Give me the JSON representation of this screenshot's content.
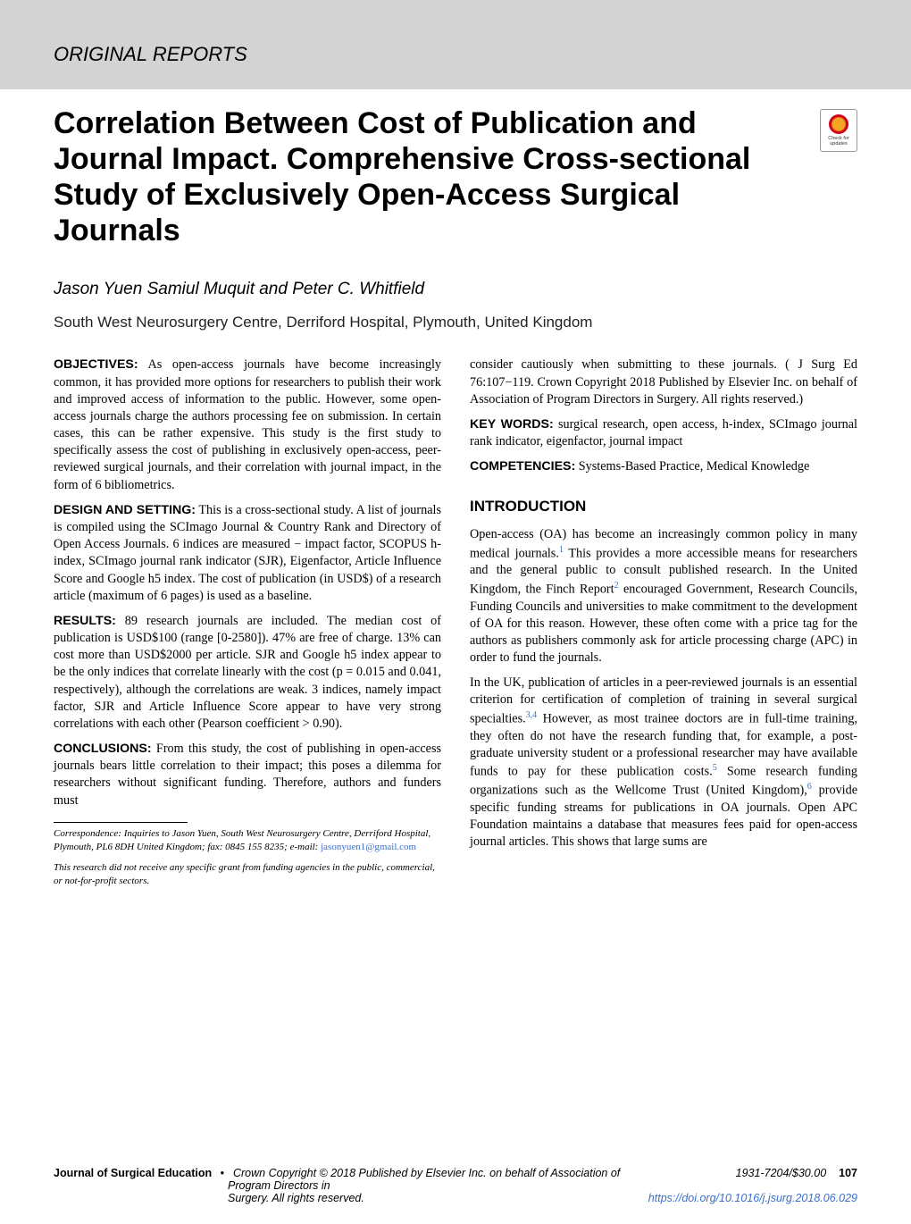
{
  "header": {
    "section_label": "ORIGINAL REPORTS"
  },
  "article": {
    "title": "Correlation Between Cost of Publication and Journal Impact. Comprehensive Cross-sectional Study of Exclusively Open-Access Surgical Journals",
    "authors": "Jason Yuen Samiul Muquit and Peter C. Whitfield",
    "affiliation": "South West Neurosurgery Centre, Derriford Hospital, Plymouth, United Kingdom"
  },
  "badge": {
    "line1": "Check for",
    "line2": "updates"
  },
  "abstract": {
    "objectives_label": "OBJECTIVES:",
    "objectives_text": " As open-access journals have become increasingly common, it has provided more options for researchers to publish their work and improved access of information to the public. However, some open-access journals charge the authors processing fee on submission. In certain cases, this can be rather expensive. This study is the first study to specifically assess the cost of publishing in exclusively open-access, peer-reviewed surgical journals, and their correlation with journal impact, in the form of 6 bibliometrics.",
    "design_label": "DESIGN AND SETTING:",
    "design_text": " This is a cross-sectional study. A list of journals is compiled using the SCImago Journal & Country Rank and Directory of Open Access Journals. 6 indices are measured − impact factor, SCOPUS h-index, SCImago journal rank indicator (SJR), Eigenfactor, Article Influence Score and Google h5 index. The cost of publication (in USD$) of a research article (maximum of 6 pages) is used as a baseline.",
    "results_label": "RESULTS:",
    "results_text": " 89 research journals are included. The median cost of publication is USD$100 (range [0-2580]). 47% are free of charge. 13% can cost more than USD$2000 per article. SJR and Google h5 index appear to be the only indices that correlate linearly with the cost (p = 0.015 and 0.041, respectively), although the correlations are weak. 3 indices, namely impact factor, SJR and Article Influence Score appear to have very strong correlations with each other (Pearson coefficient > 0.90).",
    "conclusions_label": "CONCLUSIONS:",
    "conclusions_text": " From this study, the cost of publishing in open-access journals bears little correlation to their impact; this poses a dilemma for researchers without significant funding. Therefore, authors and funders must",
    "continuation": "consider cautiously when submitting to these journals. ( J Surg Ed 76:107−119. Crown Copyright  2018 Published by Elsevier Inc. on behalf of Association of Program Directors in Surgery. All rights reserved.)",
    "keywords_label": "KEY WORDS:",
    "keywords_text": " surgical research, open access, h-index, SCImago journal rank indicator, eigenfactor, journal impact",
    "competencies_label": "COMPETENCIES:",
    "competencies_text": " Systems-Based Practice, Medical Knowledge"
  },
  "intro": {
    "heading": "INTRODUCTION",
    "p1a": "Open-access (OA) has become an increasingly common policy in many medical journals.",
    "p1b": " This provides a more accessible means for researchers and the general public to consult published research. In the United Kingdom, the Finch Report",
    "p1c": " encouraged Government, Research Councils, Funding Councils and universities to make commitment to the development of OA for this reason. However, these often come with a price tag for the authors as publishers commonly ask for article processing charge (APC) in order to fund the journals.",
    "p2a": "In the UK, publication of articles in a peer-reviewed journals is an essential criterion for certification of completion of training in several surgical specialties.",
    "p2b": " However, as most trainee doctors are in full-time training, they often do not have the research funding that, for example, a post-graduate university student or a professional researcher may have available funds to pay for these publication costs.",
    "p2c": " Some research funding organizations such as the Wellcome Trust (United Kingdom),",
    "p2d": " provide specific funding streams for publications in OA journals. Open APC Foundation maintains a database that measures fees paid for open-access journal articles. This shows that large sums are"
  },
  "refs": {
    "r1": "1",
    "r2": "2",
    "r34": "3,4",
    "r5": "5",
    "r6": "6"
  },
  "footnotes": {
    "correspondence": "Correspondence: Inquiries to Jason Yuen, South West Neurosurgery Centre, Derriford Hospital, Plymouth, PL6 8DH United Kingdom; fax: 0845 155 8235; e-mail: ",
    "email": "jasonyuen1@gmail.com",
    "funding": "This research did not receive any specific grant from funding agencies in the public, commercial, or not-for-profit sectors."
  },
  "footer": {
    "journal": "Journal of Surgical Education",
    "bullet": "•",
    "copyright1": "Crown Copyright © 2018 Published by Elsevier Inc. on behalf of Association of",
    "copyright2": "Program Directors in",
    "copyright3": "Surgery. All rights reserved.",
    "issn": "1931-7204/$30.00",
    "page": "107",
    "doi": "https://doi.org/10.1016/j.jsurg.2018.06.029"
  }
}
